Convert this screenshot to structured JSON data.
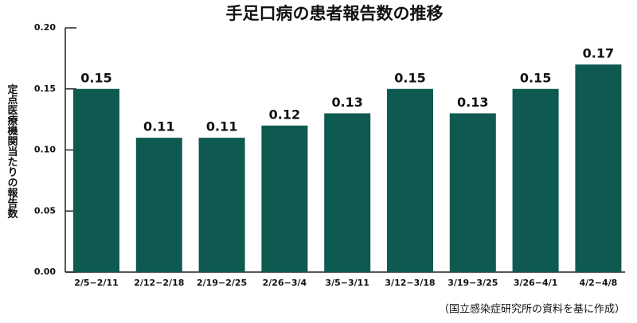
{
  "chart_data": {
    "type": "bar",
    "title": "手足口病の患者報告数の推移",
    "y_label": "定点医療機関当たりの報告数",
    "source": "（国立感染症研究所の資料を基に作成）",
    "categories": [
      "2/5−2/11",
      "2/12−2/18",
      "2/19−2/25",
      "2/26−3/4",
      "3/5−3/11",
      "3/12−3/18",
      "3/19−3/25",
      "3/26−4/1",
      "4/2−4/8"
    ],
    "values": [
      0.15,
      0.11,
      0.11,
      0.12,
      0.13,
      0.15,
      0.13,
      0.15,
      0.17
    ],
    "color": "#0f5a50",
    "ylim": [
      0,
      0.2
    ],
    "yticks": [
      {
        "value": 0,
        "label": "0.00"
      },
      {
        "value": 0.05,
        "label": "0.05"
      },
      {
        "value": 0.1,
        "label": "0.10"
      },
      {
        "value": 0.15,
        "label": "0.15"
      },
      {
        "value": 0.2,
        "label": "0.20"
      }
    ],
    "grid": false
  }
}
